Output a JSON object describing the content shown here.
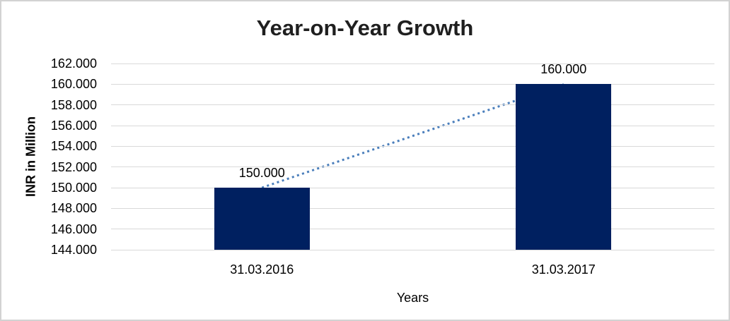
{
  "chart_data": {
    "type": "bar",
    "title": "Year-on-Year Growth",
    "xlabel": "Years",
    "ylabel": "INR in Million",
    "categories": [
      "31.03.2016",
      "31.03.2017"
    ],
    "values": [
      150000,
      160000
    ],
    "value_labels": [
      "150.000",
      "160.000"
    ],
    "y_ticks": [
      "144.000",
      "146.000",
      "148.000",
      "150.000",
      "152.000",
      "154.000",
      "156.000",
      "158.000",
      "160.000",
      "162.000"
    ],
    "ylim": [
      144000,
      162000
    ],
    "y_step": 2000,
    "grid": true,
    "legend": "none",
    "bar_color": "#002060",
    "gridline_color": "#d9d9d9",
    "trendline": {
      "style": "dotted",
      "color": "#4a7ebb",
      "from_value": 150000,
      "to_value": 160000
    }
  }
}
